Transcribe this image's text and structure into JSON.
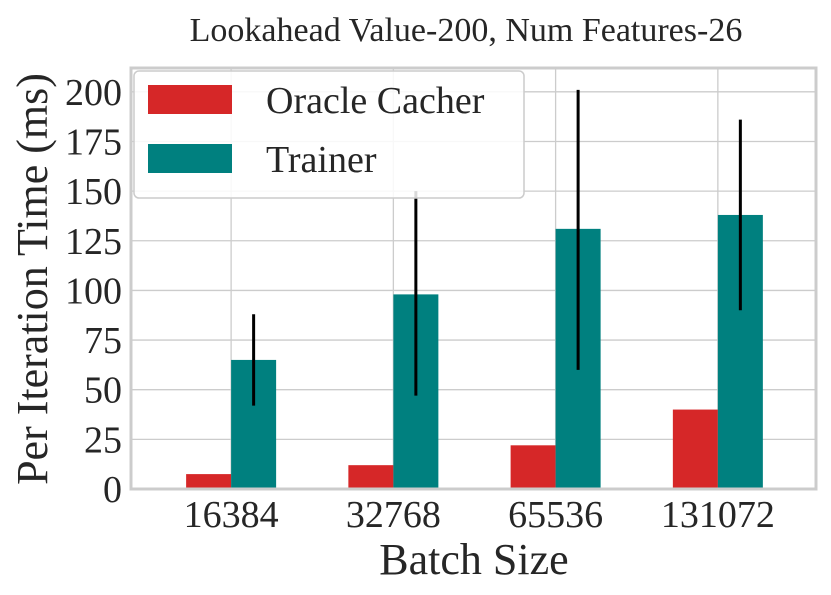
{
  "chart_data": {
    "type": "bar",
    "title": "Lookahead Value-200, Num Features-26",
    "xlabel": "Batch Size",
    "ylabel": "Per Iteration Time (ms)",
    "categories": [
      "16384",
      "32768",
      "65536",
      "131072"
    ],
    "ylim": [
      0,
      212
    ],
    "yticks": [
      0,
      25,
      50,
      75,
      100,
      125,
      150,
      175,
      200
    ],
    "grid": true,
    "legend_position": "top-left",
    "series": [
      {
        "name": "Oracle Cacher",
        "color": "#d62728",
        "values": [
          7.5,
          12,
          22,
          40
        ],
        "errors": [
          null,
          null,
          null,
          null
        ]
      },
      {
        "name": "Trainer",
        "color": "#00807f",
        "values": [
          65,
          98,
          131,
          138
        ],
        "errors": [
          [
            42,
            88
          ],
          [
            47,
            150
          ],
          [
            60,
            201
          ],
          [
            90,
            186
          ]
        ]
      }
    ]
  }
}
